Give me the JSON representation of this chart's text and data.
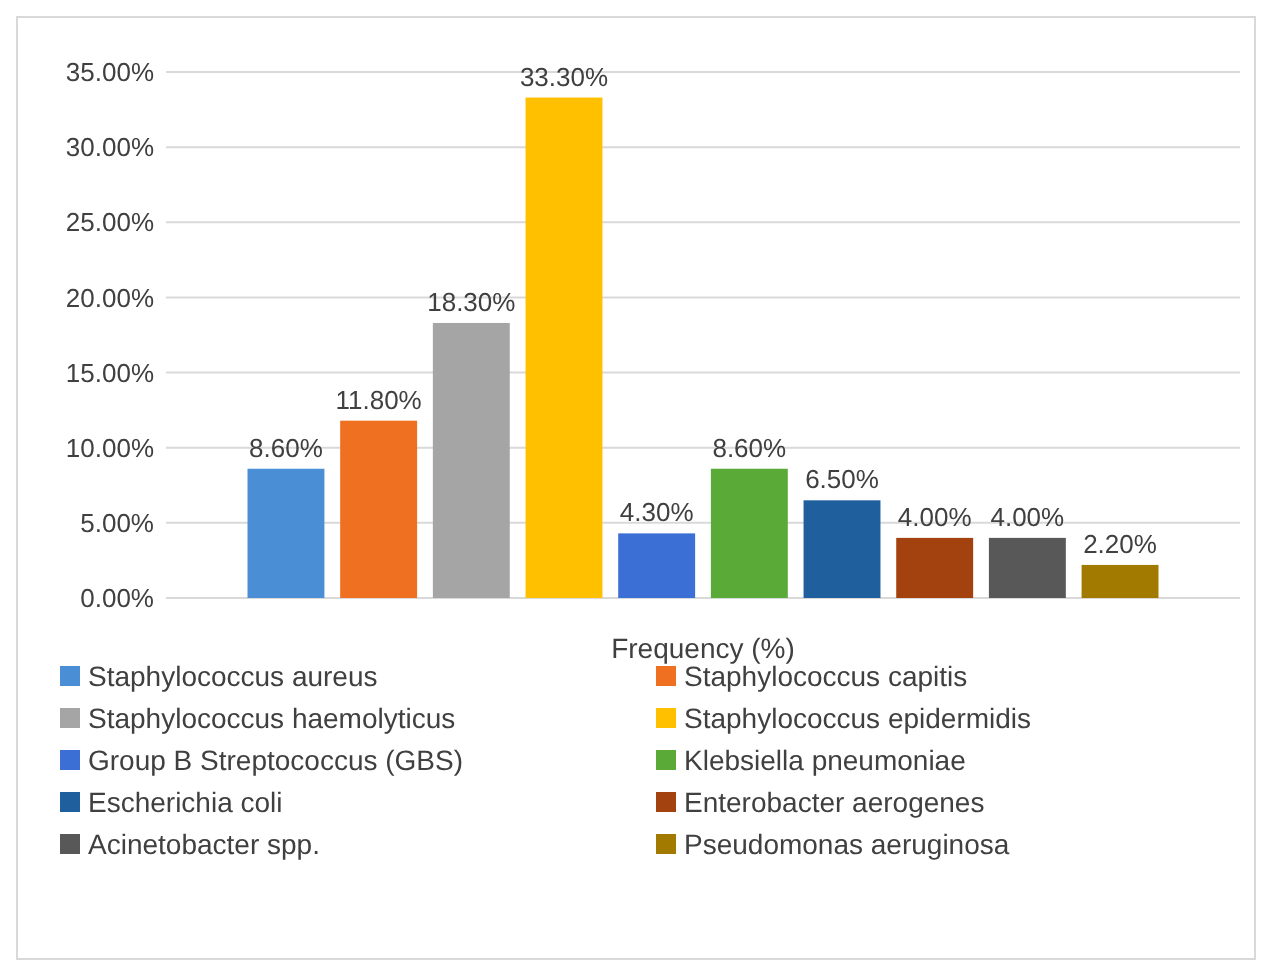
{
  "chart_data": {
    "type": "bar",
    "categories": [
      "Frequency (%)"
    ],
    "ylim": [
      0,
      35
    ],
    "yticks": [
      {
        "value": 0,
        "label": "0.00%"
      },
      {
        "value": 5,
        "label": "5.00%"
      },
      {
        "value": 10,
        "label": "10.00%"
      },
      {
        "value": 15,
        "label": "15.00%"
      },
      {
        "value": 20,
        "label": "20.00%"
      },
      {
        "value": 25,
        "label": "25.00%"
      },
      {
        "value": 30,
        "label": "30.00%"
      },
      {
        "value": 35,
        "label": "35.00%"
      }
    ],
    "grid": "y",
    "legend": "bottom",
    "series": [
      {
        "name": "Staphylococcus aureus",
        "color": "#4a8fd6",
        "values": [
          8.6
        ],
        "value_labels": [
          "8.60%"
        ]
      },
      {
        "name": "Staphylococcus capitis",
        "color": "#f07021",
        "values": [
          11.8
        ],
        "value_labels": [
          "11.80%"
        ]
      },
      {
        "name": "Staphylococcus haemolyticus",
        "color": "#a5a5a5",
        "values": [
          18.3
        ],
        "value_labels": [
          "18.30%"
        ]
      },
      {
        "name": "Staphylococcus epidermidis",
        "color": "#ffc000",
        "values": [
          33.3
        ],
        "value_labels": [
          "33.30%"
        ]
      },
      {
        "name": "Group B Streptococcus (GBS)",
        "color": "#3b6fd6",
        "values": [
          4.3
        ],
        "value_labels": [
          "4.30%"
        ]
      },
      {
        "name": "Klebsiella pneumoniae",
        "color": "#5aaa38",
        "values": [
          8.6
        ],
        "value_labels": [
          "8.60%"
        ]
      },
      {
        "name": "Escherichia coli",
        "color": "#1f5f9e",
        "values": [
          6.5
        ],
        "value_labels": [
          "6.50%"
        ]
      },
      {
        "name": "Enterobacter aerogenes",
        "color": "#a3420f",
        "values": [
          4.0
        ],
        "value_labels": [
          "4.00%"
        ]
      },
      {
        "name": "Acinetobacter spp.",
        "color": "#585858",
        "values": [
          4.0
        ],
        "value_labels": [
          "4.00%"
        ]
      },
      {
        "name": "Pseudomonas aeruginosa",
        "color": "#a37a00",
        "values": [
          2.2
        ],
        "value_labels": [
          "2.20%"
        ]
      }
    ]
  }
}
